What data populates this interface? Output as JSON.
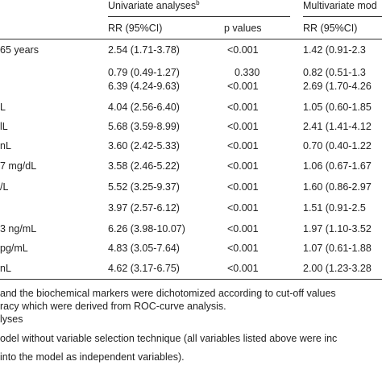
{
  "header": {
    "univariate_label": "Univariate analyses",
    "univariate_sup": "b",
    "multivariate_label": "Multivariate mod",
    "rr_label_1": "RR (95%CI)",
    "pvalues_label": "p values",
    "rr_label_2": "RR (95%CI)"
  },
  "rows": [
    {
      "label": "65 years",
      "rr": "2.54 (1.71-3.78)",
      "p": "<0.001",
      "mrr": "1.42 (0.91-2.3"
    },
    {
      "label": "",
      "rr": "0.79 (0.49-1.27)",
      "p": "0.330",
      "mrr": "0.82 (0.51-1.3"
    },
    {
      "label": "",
      "rr": "6.39 (4.24-9.63)",
      "p": "<0.001",
      "mrr": "2.69 (1.70-4.26"
    },
    {
      "label": "L",
      "rr": "4.04 (2.56-6.40)",
      "p": "<0.001",
      "mrr": "1.05 (0.60-1.85"
    },
    {
      "label": "lL",
      "rr": "5.68 (3.59-8.99)",
      "p": "<0.001",
      "mrr": "2.41 (1.41-4.12"
    },
    {
      "label": "nL",
      "rr": "3.60 (2.42-5.33)",
      "p": "<0.001",
      "mrr": "0.70 (0.40-1.22"
    },
    {
      "label": "7 mg/dL",
      "rr": "3.58 (2.46-5.22)",
      "p": "<0.001",
      "mrr": "1.06 (0.67-1.67"
    },
    {
      "label": "/L",
      "rr": "5.52 (3.25-9.37)",
      "p": "<0.001",
      "mrr": "1.60 (0.86-2.97"
    },
    {
      "label": "",
      "rr": "3.97 (2.57-6.12)",
      "p": "<0.001",
      "mrr": "1.51 (0.91-2.5"
    },
    {
      "label": "3 ng/mL",
      "rr": "6.26 (3.98-10.07)",
      "p": "<0.001",
      "mrr": "1.97 (1.10-3.52"
    },
    {
      "label": "pg/mL",
      "rr": "4.83 (3.05-7.64)",
      "p": "<0.001",
      "mrr": "1.07 (0.61-1.88"
    },
    {
      "label": "nL",
      "rr": "4.62 (3.17-6.75)",
      "p": "<0.001",
      "mrr": "2.00 (1.23-3.28"
    }
  ],
  "footnotes": [
    "and the biochemical markers were dichotomized according to cut-off values",
    "racy which were derived from ROC-curve analysis.",
    "lyses",
    "odel without variable selection technique (all variables listed above were inc",
    "into the model as independent variables)."
  ]
}
